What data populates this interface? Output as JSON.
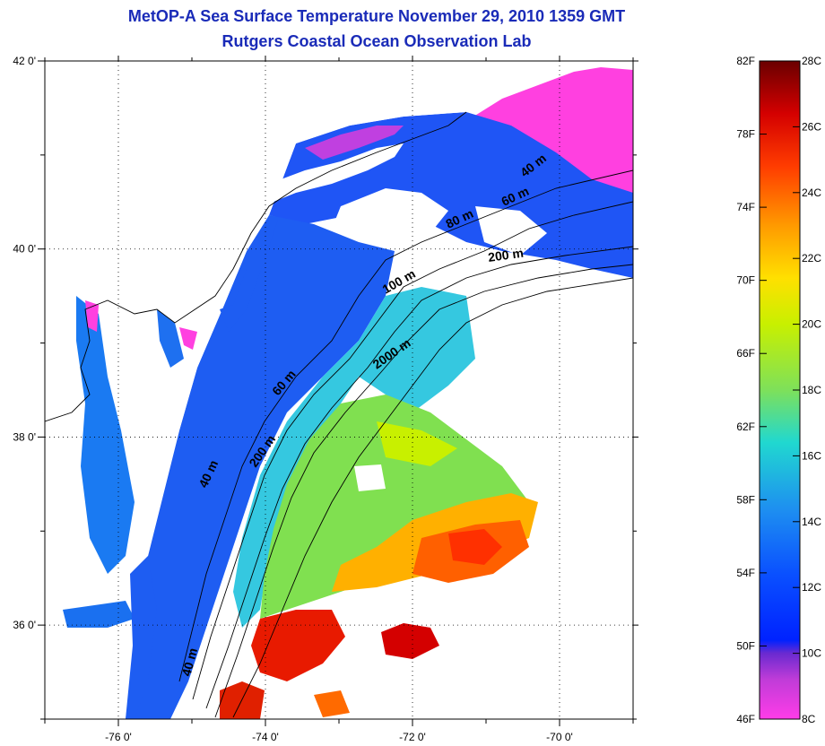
{
  "title": "MetOP-A Sea Surface Temperature November 29, 2010 1359 GMT",
  "subtitle": "Rutgers Coastal Ocean Observation Lab",
  "map": {
    "lon_range": [
      -77.0,
      -69.0
    ],
    "lat_range": [
      35.0,
      42.0
    ],
    "lon_ticks": [
      {
        "value": -76,
        "label": "-76 0'"
      },
      {
        "value": -74,
        "label": "-74 0'"
      },
      {
        "value": -72,
        "label": "-72 0'"
      },
      {
        "value": -70,
        "label": "-70 0'"
      }
    ],
    "lat_ticks": [
      {
        "value": 42,
        "label": "42 0'"
      },
      {
        "value": 40,
        "label": "40 0'"
      },
      {
        "value": 38,
        "label": "38 0'"
      },
      {
        "value": 36,
        "label": "36 0'"
      }
    ],
    "grid": "dotted",
    "contour_labels": [
      "40 m",
      "60 m",
      "80 m",
      "200 m",
      "100 m",
      "2000 m",
      "60 m",
      "200 m",
      "40 m",
      "40 m"
    ]
  },
  "colorbar": {
    "fahrenheit_labels": [
      "82F",
      "78F",
      "74F",
      "70F",
      "66F",
      "62F",
      "58F",
      "54F",
      "50F",
      "46F"
    ],
    "celsius_labels": [
      "28C",
      "26C",
      "24C",
      "22C",
      "20C",
      "18C",
      "16C",
      "14C",
      "12C",
      "10C",
      "8C"
    ],
    "colors": [
      "#7a0000",
      "#d40000",
      "#ff5a00",
      "#ffc000",
      "#e8f000",
      "#7ee05a",
      "#20d8d0",
      "#1e90f0",
      "#0022ff",
      "#6a2ad0",
      "#ff3ce8"
    ]
  }
}
